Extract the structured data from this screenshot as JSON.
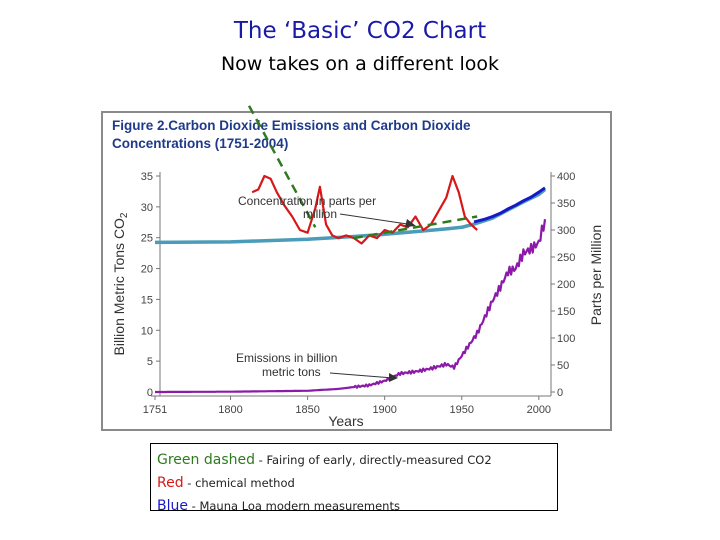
{
  "slide": {
    "title": "The ‘Basic’ CO2 Chart",
    "subtitle": "Now takes on a different look"
  },
  "legend": {
    "items": [
      {
        "key": "Green dashed",
        "desc": " - Fairing of early, directly-measured CO2",
        "color": "#2f7a1f"
      },
      {
        "key": "Red",
        "desc": " - chemical method",
        "color": "#d81818"
      },
      {
        "key": "Blue",
        "desc": " - Mauna Loa modern measurements",
        "color": "#1818c8"
      }
    ]
  },
  "chart_data": {
    "type": "line",
    "title_line1": "Figure 2.Carbon Dioxide Emissions and Carbon Dioxide",
    "title_line2": "Concentrations (1751-2004)",
    "xlabel": "Years",
    "ylabel_left": "Billion Metric Tons CO",
    "ylabel_left_subscript": "2",
    "ylabel_right": "Parts per Million",
    "xlim": [
      1751,
      2004
    ],
    "ylim_left": [
      0,
      35
    ],
    "ylim_right": [
      0,
      400
    ],
    "x_ticks": [
      "1751",
      "1800",
      "1850",
      "1900",
      "1950",
      "2000"
    ],
    "x_tick_values": [
      1751,
      1800,
      1850,
      1900,
      1950,
      2000
    ],
    "y_left_ticks": [
      "0",
      "5",
      "10",
      "15",
      "20",
      "25",
      "30",
      "35"
    ],
    "y_left_tick_values": [
      0,
      5,
      10,
      15,
      20,
      25,
      30,
      35
    ],
    "y_right_ticks": [
      "0",
      "50",
      "100",
      "150",
      "200",
      "250",
      "300",
      "350",
      "400"
    ],
    "y_right_tick_values": [
      0,
      50,
      100,
      150,
      200,
      250,
      300,
      350,
      400
    ],
    "annotations": [
      {
        "text1": "Concentration in parts per",
        "text2": "million"
      },
      {
        "text1": "Emissions in billion",
        "text2": "metric tons"
      }
    ],
    "series": [
      {
        "name": "CO2 concentration (ppm)",
        "axis": "right",
        "color": "#4a9cb8",
        "x": [
          1751,
          1800,
          1850,
          1880,
          1900,
          1920,
          1940,
          1950,
          1958,
          1970,
          1980,
          1990,
          2000,
          2004
        ],
        "values": [
          277,
          278,
          283,
          288,
          292,
          297,
          302,
          305,
          311,
          322,
          337,
          352,
          366,
          375
        ]
      },
      {
        "name": "Emissions (billion metric tons)",
        "axis": "left",
        "color": "#8b1aa8",
        "x": [
          1751,
          1800,
          1850,
          1870,
          1890,
          1900,
          1910,
          1920,
          1930,
          1940,
          1945,
          1950,
          1960,
          1970,
          1975,
          1980,
          1985,
          1990,
          1995,
          2000,
          2004
        ],
        "values": [
          0,
          0.05,
          0.2,
          0.5,
          1.1,
          1.8,
          3.0,
          3.3,
          3.8,
          4.5,
          4.0,
          5.9,
          9.5,
          14.8,
          17.0,
          19.5,
          20.0,
          22.5,
          23.2,
          24.2,
          28.0
        ]
      },
      {
        "name": "Red - chemical method (ppm)",
        "axis": "right",
        "color": "#d81818",
        "x": [
          1814,
          1818,
          1822,
          1826,
          1830,
          1835,
          1840,
          1845,
          1850,
          1855,
          1858,
          1862,
          1866,
          1870,
          1875,
          1880,
          1885,
          1890,
          1895,
          1900,
          1905,
          1910,
          1915,
          1920,
          1925,
          1930,
          1935,
          1940,
          1944,
          1948,
          1952,
          1956,
          1960
        ],
        "values": [
          370,
          375,
          400,
          395,
          370,
          345,
          325,
          300,
          295,
          340,
          380,
          310,
          290,
          285,
          290,
          285,
          275,
          290,
          285,
          300,
          295,
          310,
          305,
          325,
          300,
          310,
          335,
          360,
          400,
          370,
          325,
          310,
          300
        ]
      },
      {
        "name": "Blue - Mauna Loa (ppm)",
        "axis": "right",
        "color": "#1818c8",
        "x": [
          1958,
          1965,
          1970,
          1975,
          1980,
          1985,
          1990,
          1995,
          2000,
          2004
        ],
        "values": [
          315,
          320,
          325,
          331,
          339,
          346,
          354,
          361,
          370,
          378
        ]
      },
      {
        "name": "Green dashed - Fairing (ppm)",
        "axis": "right",
        "color": "#2f7a1f",
        "segments": [
          {
            "x": [
              1812,
              1855
            ],
            "values": [
              530,
              305
            ]
          },
          {
            "x": [
              1880,
              1960
            ],
            "values": [
              285,
              325
            ]
          }
        ]
      }
    ]
  }
}
